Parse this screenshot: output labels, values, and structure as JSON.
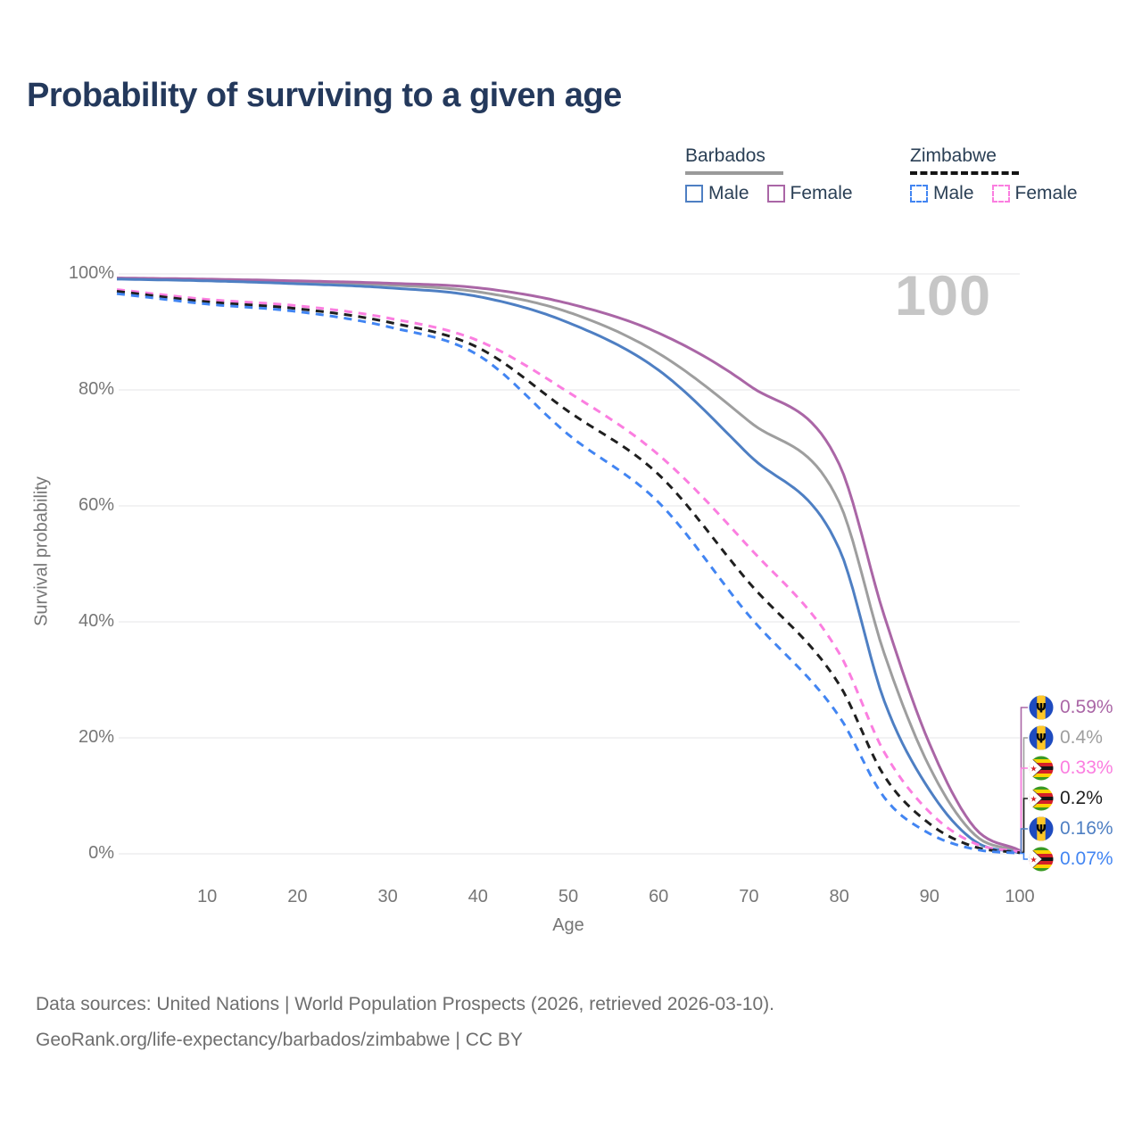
{
  "title": "Probability of surviving to a given age",
  "watermark": "100",
  "legend": {
    "groups": [
      {
        "name": "Barbados",
        "style": "solid",
        "rule_series": "barbados_all",
        "items": [
          {
            "label": "Male",
            "series": "barbados_male"
          },
          {
            "label": "Female",
            "series": "barbados_female"
          }
        ]
      },
      {
        "name": "Zimbabwe",
        "style": "dashed",
        "rule_series": "zimbabwe_all",
        "items": [
          {
            "label": "Male",
            "series": "zimbabwe_male"
          },
          {
            "label": "Female",
            "series": "zimbabwe_female"
          }
        ]
      }
    ]
  },
  "axes": {
    "y_label": "Survival probability",
    "x_label": "Age",
    "y_ticks": [
      "100%",
      "80%",
      "60%",
      "40%",
      "20%",
      "0%"
    ],
    "y_tick_values": [
      100,
      80,
      60,
      40,
      20,
      0
    ],
    "x_ticks": [
      10,
      20,
      30,
      40,
      50,
      60,
      70,
      80,
      90,
      100
    ]
  },
  "chart_data": {
    "type": "line",
    "title": "Probability of surviving to a given age",
    "xlabel": "Age",
    "ylabel": "Survival probability",
    "xlim": [
      0,
      100
    ],
    "ylim": [
      0,
      100
    ],
    "grid": "horizontal",
    "legend_position": "top-right",
    "hovered_age": 100,
    "ages": [
      0,
      10,
      20,
      30,
      40,
      50,
      60,
      70,
      80,
      85,
      90,
      95,
      100
    ],
    "series": [
      {
        "name": "Barbados Female",
        "key": "barbados_female",
        "color": "#aa66a6",
        "dash": "solid",
        "flag": "barbados",
        "end_label": "0.59%",
        "values": [
          99.3,
          99.1,
          98.8,
          98.4,
          97.6,
          94.9,
          89.8,
          80.8,
          67.2,
          41.0,
          19.0,
          4.5,
          0.59
        ]
      },
      {
        "name": "Barbados",
        "key": "barbados_all",
        "color": "#9e9e9e",
        "dash": "solid",
        "flag": "barbados",
        "end_label": "0.4%",
        "values": [
          99.2,
          99.0,
          98.6,
          98.1,
          96.9,
          93.4,
          86.3,
          74.6,
          60.6,
          34.5,
          15.0,
          3.3,
          0.4
        ]
      },
      {
        "name": "Zimbabwe Female",
        "key": "zimbabwe_female",
        "color": "#fb7ee0",
        "dash": "dashed",
        "flag": "zimbabwe",
        "end_label": "0.33%",
        "values": [
          97.3,
          95.6,
          94.5,
          92.4,
          88.5,
          79.6,
          68.8,
          52.9,
          34.6,
          17.5,
          7.2,
          1.8,
          0.33
        ]
      },
      {
        "name": "Zimbabwe",
        "key": "zimbabwe_all",
        "color": "#1f1f1f",
        "dash": "dashed",
        "flag": "zimbabwe",
        "end_label": "0.2%",
        "values": [
          97.0,
          95.2,
          94.0,
          91.7,
          87.3,
          76.3,
          65.4,
          46.8,
          29.2,
          13.4,
          5.2,
          1.2,
          0.2
        ]
      },
      {
        "name": "Barbados Male",
        "key": "barbados_male",
        "color": "#4e7fc3",
        "dash": "solid",
        "flag": "barbados",
        "end_label": "0.16%",
        "values": [
          99.1,
          98.8,
          98.3,
          97.6,
          96.1,
          91.6,
          83.4,
          68.8,
          52.6,
          26.3,
          11.0,
          2.2,
          0.16
        ]
      },
      {
        "name": "Zimbabwe Male",
        "key": "zimbabwe_male",
        "color": "#4285f2",
        "dash": "dashed",
        "flag": "zimbabwe",
        "end_label": "0.07%",
        "values": [
          96.6,
          94.8,
          93.5,
          90.9,
          86.0,
          72.3,
          60.6,
          41.1,
          23.7,
          9.7,
          3.5,
          0.8,
          0.07
        ]
      }
    ]
  },
  "footer": {
    "line1": "Data sources: United Nations | World Population Prospects (2026, retrieved 2026-03-10).",
    "line2": "GeoRank.org/life-expectancy/barbados/zimbabwe | CC BY"
  },
  "colors": {
    "title_text": "#24395c",
    "axis_text": "#767676",
    "gridline": "#e9e9ec",
    "watermark": "#c6c6c6",
    "footer_text": "#6e6e6e"
  }
}
